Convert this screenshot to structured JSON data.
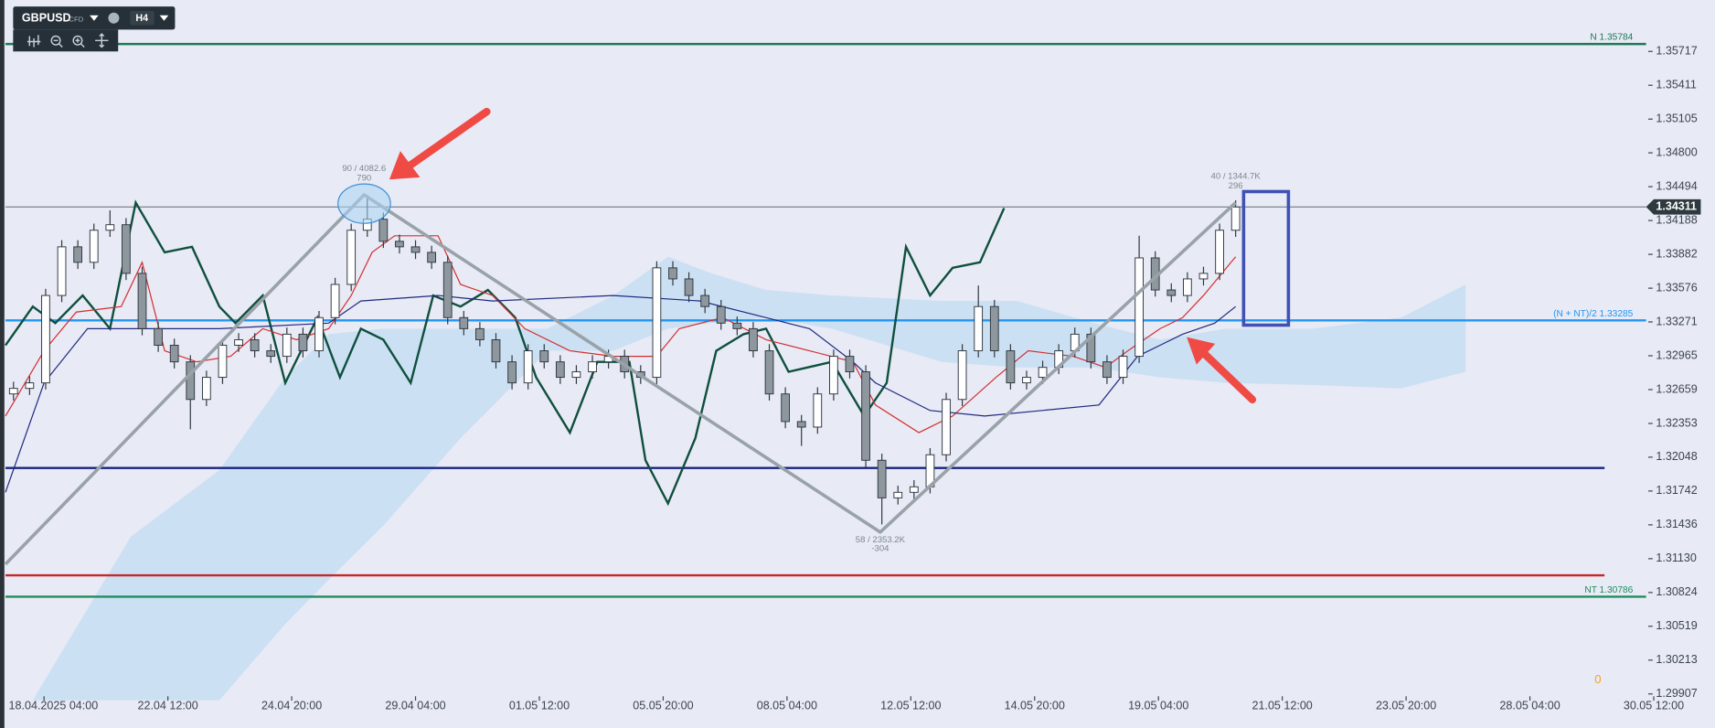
{
  "toolbar": {
    "symbol": "GBPUSD",
    "market": "CFD",
    "timeframe": "H4"
  },
  "chart_data": {
    "type": "candlestick",
    "x": [
      0,
      1,
      2,
      3,
      4,
      5,
      6,
      7,
      8,
      9,
      10,
      11,
      12,
      13,
      14,
      15,
      16,
      17,
      18,
      19,
      20,
      21,
      22,
      23,
      24,
      25,
      26,
      27,
      28,
      29,
      30,
      31,
      32,
      33,
      34,
      35,
      36,
      37,
      38,
      39,
      40,
      41,
      42,
      43,
      44,
      45,
      46,
      47,
      48,
      49,
      50,
      51,
      52,
      53,
      54,
      55,
      56,
      57,
      58,
      59,
      60,
      61,
      62,
      63,
      64,
      65,
      66,
      67,
      68,
      69,
      70,
      71,
      72,
      73,
      74,
      75,
      76
    ],
    "open": [
      1.3262,
      1.3267,
      1.3272,
      1.3351,
      1.3395,
      1.3381,
      1.341,
      1.3415,
      1.3371,
      1.3321,
      1.3306,
      1.3291,
      1.3257,
      1.3277,
      1.3306,
      1.3311,
      1.3301,
      1.3296,
      1.3316,
      1.3301,
      1.3331,
      1.3361,
      1.341,
      1.342,
      1.34,
      1.3395,
      1.339,
      1.3381,
      1.3331,
      1.3321,
      1.3311,
      1.3291,
      1.3272,
      1.3301,
      1.3291,
      1.3277,
      1.3282,
      1.3291,
      1.3296,
      1.3282,
      1.3277,
      1.3376,
      1.3366,
      1.3351,
      1.3341,
      1.3326,
      1.3321,
      1.3301,
      1.3262,
      1.3237,
      1.3232,
      1.3262,
      1.3296,
      1.3282,
      1.3202,
      1.3168,
      1.3173,
      1.3178,
      1.3207,
      1.3257,
      1.3301,
      1.3341,
      1.3301,
      1.3272,
      1.3277,
      1.3286,
      1.3301,
      1.3316,
      1.3291,
      1.3277,
      1.3296,
      1.3385,
      1.3356,
      1.3351,
      1.3366,
      1.3371,
      1.341
    ],
    "high": [
      1.3273,
      1.3278,
      1.3357,
      1.3401,
      1.3401,
      1.3416,
      1.3428,
      1.3421,
      1.3377,
      1.3327,
      1.3312,
      1.3297,
      1.3283,
      1.3312,
      1.3317,
      1.3317,
      1.3307,
      1.3322,
      1.3322,
      1.3337,
      1.3367,
      1.3416,
      1.3442,
      1.3426,
      1.3406,
      1.3401,
      1.3396,
      1.3387,
      1.3337,
      1.3327,
      1.3317,
      1.3297,
      1.3307,
      1.3307,
      1.3297,
      1.3288,
      1.3297,
      1.3302,
      1.3302,
      1.3288,
      1.3382,
      1.3382,
      1.3372,
      1.3357,
      1.3347,
      1.3332,
      1.3327,
      1.3307,
      1.3268,
      1.3243,
      1.3268,
      1.3302,
      1.3302,
      1.3288,
      1.3208,
      1.3179,
      1.3184,
      1.3213,
      1.3263,
      1.3307,
      1.336,
      1.3347,
      1.3307,
      1.3283,
      1.3292,
      1.3307,
      1.3322,
      1.3322,
      1.3297,
      1.3302,
      1.3405,
      1.3391,
      1.3362,
      1.3372,
      1.3377,
      1.3416,
      1.3437
    ],
    "low": [
      1.3256,
      1.3261,
      1.3266,
      1.3345,
      1.3375,
      1.3375,
      1.3404,
      1.3365,
      1.3315,
      1.33,
      1.3285,
      1.323,
      1.3251,
      1.3271,
      1.33,
      1.3295,
      1.329,
      1.329,
      1.3295,
      1.3295,
      1.3325,
      1.3355,
      1.3404,
      1.3394,
      1.3389,
      1.3384,
      1.3375,
      1.3325,
      1.3315,
      1.3305,
      1.3285,
      1.3266,
      1.3266,
      1.3285,
      1.3271,
      1.3271,
      1.3276,
      1.3285,
      1.3276,
      1.3271,
      1.3271,
      1.336,
      1.3345,
      1.3335,
      1.332,
      1.3315,
      1.3295,
      1.3256,
      1.3231,
      1.3215,
      1.3226,
      1.3256,
      1.3276,
      1.3196,
      1.3144,
      1.3162,
      1.3167,
      1.3172,
      1.3201,
      1.3251,
      1.3295,
      1.3295,
      1.3266,
      1.3266,
      1.3271,
      1.328,
      1.3295,
      1.3285,
      1.3271,
      1.3271,
      1.329,
      1.335,
      1.3345,
      1.3345,
      1.336,
      1.3365,
      1.3404
    ],
    "close": [
      1.3267,
      1.3272,
      1.3351,
      1.3395,
      1.3381,
      1.341,
      1.3415,
      1.3371,
      1.3321,
      1.3306,
      1.3291,
      1.3257,
      1.3277,
      1.3306,
      1.3311,
      1.3301,
      1.3296,
      1.3316,
      1.3301,
      1.3331,
      1.3361,
      1.341,
      1.342,
      1.34,
      1.3395,
      1.339,
      1.3381,
      1.3331,
      1.3321,
      1.3311,
      1.3291,
      1.3272,
      1.3301,
      1.3291,
      1.3277,
      1.3282,
      1.3291,
      1.3296,
      1.3282,
      1.3277,
      1.3376,
      1.3366,
      1.3351,
      1.3341,
      1.3326,
      1.3321,
      1.3301,
      1.3262,
      1.3237,
      1.3232,
      1.3262,
      1.3296,
      1.3282,
      1.3202,
      1.3168,
      1.3173,
      1.3178,
      1.3207,
      1.3257,
      1.3301,
      1.3341,
      1.3301,
      1.3272,
      1.3277,
      1.3286,
      1.3301,
      1.3316,
      1.3291,
      1.3277,
      1.3296,
      1.3385,
      1.3356,
      1.3351,
      1.3366,
      1.3371,
      1.341,
      1.3431
    ],
    "colors": {
      "up": "#ffffff",
      "down": "#8e979d",
      "outline": "#2e3840"
    },
    "xlim": [
      -0.5,
      102
    ],
    "xticks": [
      {
        "value": 1.9,
        "label": "18.04.2025 04:00"
      },
      {
        "value": 9.6,
        "label": "22.04 12:00"
      },
      {
        "value": 17.3,
        "label": "24.04 20:00"
      },
      {
        "value": 25.0,
        "label": "29.04 04:00"
      },
      {
        "value": 32.7,
        "label": "01.05 12:00"
      },
      {
        "value": 40.4,
        "label": "05.05 20:00"
      },
      {
        "value": 48.1,
        "label": "08.05 04:00"
      },
      {
        "value": 55.8,
        "label": "12.05 12:00"
      },
      {
        "value": 63.5,
        "label": "14.05 20:00"
      },
      {
        "value": 71.2,
        "label": "19.05 04:00"
      },
      {
        "value": 78.9,
        "label": "21.05 12:00"
      },
      {
        "value": 86.6,
        "label": "23.05 20:00"
      },
      {
        "value": 94.3,
        "label": "28.05 04:00"
      },
      {
        "value": 102.0,
        "label": "30.05 12:00"
      }
    ],
    "ylim": [
      1.29698,
      1.36182
    ],
    "yticks": [
      1.35717,
      1.35411,
      1.35105,
      {
        "value": 1.348,
        "label": "1.34800"
      },
      1.34494,
      1.34188,
      1.33882,
      1.33576,
      1.33271,
      1.32965,
      1.32659,
      1.32353,
      1.32048,
      1.31742,
      1.31436,
      {
        "value": 1.3113,
        "label": "1.31130"
      },
      1.30824,
      1.30519,
      1.30213,
      1.29907
    ],
    "current_price": 1.34311,
    "cloud": {
      "color": "#b9d8f1",
      "x": [
        1.2,
        7.3,
        12.8,
        16.9,
        19.6,
        23.0,
        27.8,
        33.2,
        37.3,
        40.7,
        43.4,
        46.8,
        50.9,
        57.7,
        62.4,
        67.2,
        71.3,
        75.4,
        80.8,
        86.3,
        90.3
      ],
      "upper": [
        1.2985,
        1.3133,
        1.3193,
        1.3277,
        1.3316,
        1.3321,
        1.3321,
        1.3321,
        1.3351,
        1.3386,
        1.3371,
        1.3356,
        1.3351,
        1.3346,
        1.3346,
        1.3326,
        1.3311,
        1.3321,
        1.3321,
        1.3331,
        1.3361
      ],
      "lower": [
        1.2985,
        1.2985,
        1.2985,
        1.3054,
        1.3094,
        1.3143,
        1.3222,
        1.3301,
        1.3301,
        1.3321,
        1.3326,
        1.3331,
        1.3321,
        1.3291,
        1.3286,
        1.3286,
        1.3277,
        1.3272,
        1.327,
        1.3267,
        1.3282
      ]
    },
    "lines": [
      {
        "color": "#0f4f3d",
        "width": 2,
        "x": [
          -0.5,
          1.2,
          2.6,
          4.3,
          6.0,
          7.6,
          9.4,
          11.1,
          12.8,
          13.8,
          15.5,
          16.9,
          18.9,
          20.3,
          21.6,
          23.0,
          24.7,
          26.1,
          27.8,
          29.5,
          31.2,
          32.5,
          34.6,
          36.3,
          38.3,
          39.3,
          40.7,
          42.4,
          43.7,
          45.4,
          46.8,
          48.2,
          50.9,
          52.9,
          54.3,
          55.5,
          57.0,
          58.4,
          60.1,
          61.6
        ],
        "values": [
          1.3306,
          1.3341,
          1.3326,
          1.3351,
          1.3321,
          1.3435,
          1.339,
          1.3395,
          1.3341,
          1.3326,
          1.3351,
          1.3272,
          1.3331,
          1.3277,
          1.3321,
          1.3311,
          1.3272,
          1.3351,
          1.3341,
          1.3356,
          1.3331,
          1.3277,
          1.3227,
          1.3291,
          1.3291,
          1.3202,
          1.3163,
          1.3222,
          1.3301,
          1.3316,
          1.3321,
          1.3282,
          1.3291,
          1.3242,
          1.3272,
          1.3395,
          1.3351,
          1.3376,
          1.3381,
          1.343
        ]
      },
      {
        "color": "#d32f2f",
        "width": 1,
        "x": [
          -0.5,
          1.9,
          3.9,
          6.7,
          8.0,
          9.4,
          11.4,
          13.5,
          15.5,
          17.6,
          19.6,
          21.0,
          22.3,
          23.7,
          26.4,
          27.8,
          29.8,
          31.8,
          34.6,
          37.3,
          40.0,
          41.4,
          44.1,
          46.8,
          49.5,
          52.2,
          53.6,
          56.3,
          58.4,
          61.1,
          63.1,
          65.9,
          67.9,
          69.3,
          71.3,
          72.7,
          74.0,
          76.0
        ],
        "values": [
          1.3242,
          1.3301,
          1.3336,
          1.3341,
          1.3381,
          1.3301,
          1.3291,
          1.3296,
          1.3321,
          1.3311,
          1.3321,
          1.3351,
          1.339,
          1.3405,
          1.3405,
          1.3361,
          1.3351,
          1.3321,
          1.3301,
          1.3296,
          1.3296,
          1.3321,
          1.3331,
          1.3311,
          1.3301,
          1.3291,
          1.3252,
          1.3227,
          1.3242,
          1.3277,
          1.3301,
          1.3296,
          1.3286,
          1.3301,
          1.3321,
          1.3331,
          1.3351,
          1.3386
        ]
      },
      {
        "color": "#1f2a80",
        "width": 1,
        "x": [
          -0.5,
          1.9,
          4.6,
          8.7,
          12.8,
          19.6,
          21.6,
          26.4,
          29.8,
          37.3,
          42.7,
          46.8,
          49.5,
          52.2,
          53.6,
          57.0,
          60.4,
          67.5,
          69.9,
          72.7,
          74.7,
          76.0
        ],
        "values": [
          1.3173,
          1.3272,
          1.3321,
          1.3321,
          1.3321,
          1.3326,
          1.3346,
          1.3351,
          1.3346,
          1.3351,
          1.3346,
          1.3331,
          1.3321,
          1.3291,
          1.3272,
          1.3247,
          1.3242,
          1.3252,
          1.3296,
          1.3316,
          1.3326,
          1.3341
        ]
      }
    ],
    "zigzag": {
      "color": "#99a2a8",
      "x": [
        -0.5,
        21.8,
        53.9,
        76.0
      ],
      "values": [
        1.3108,
        1.3442,
        1.3137,
        1.3435
      ],
      "labels": [
        null,
        "90 / 4082.6",
        "58 / 2353.2K",
        "40 / 1344.7K"
      ],
      "sublabels": [
        null,
        "790",
        "-304",
        "296"
      ]
    },
    "levels": [
      {
        "value": 1.35784,
        "label": "N 1.35784",
        "color": "#1b7a55"
      },
      {
        "value": 1.33285,
        "label": "(N + NT)/2 1.33285",
        "color": "#2196f3"
      },
      {
        "value": 1.30786,
        "label": "NT 1.30786",
        "color": "#1f8c5c"
      },
      {
        "value": 1.3195,
        "label": null,
        "color": "#1a237e"
      },
      {
        "value": 1.3098,
        "label": null,
        "color": "#c62828"
      }
    ],
    "status_value": 0
  }
}
